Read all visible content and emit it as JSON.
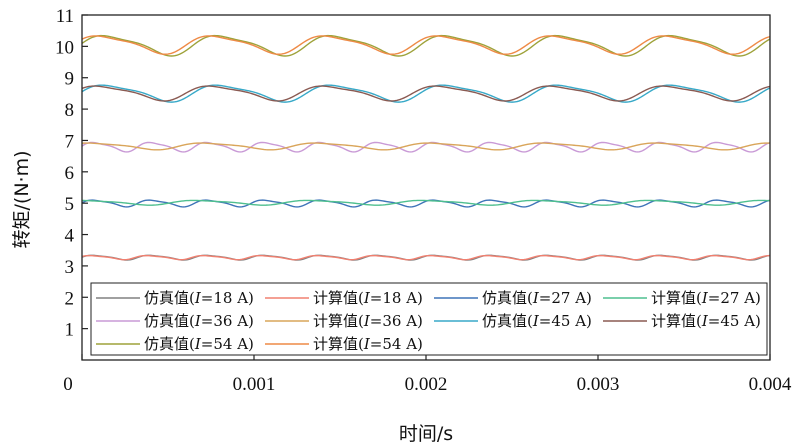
{
  "chart_data": {
    "type": "line",
    "title": "",
    "xlabel": "时间/s",
    "ylabel": "转矩/(N·m)",
    "xlim": [
      0,
      0.004
    ],
    "ylim": [
      0,
      11
    ],
    "xticks": [
      0,
      0.001,
      0.002,
      0.003,
      0.004
    ],
    "xtick_labels": [
      "0",
      "0.001",
      "0.002",
      "0.003",
      "0.004"
    ],
    "yticks": [
      1,
      2,
      3,
      4,
      5,
      6,
      7,
      8,
      9,
      10,
      11
    ],
    "ytick_labels": [
      "1",
      "2",
      "3",
      "4",
      "5",
      "6",
      "7",
      "8",
      "9",
      "10",
      "11"
    ],
    "grid": false,
    "legend": {
      "placement": "bottom-left",
      "columns": 4,
      "entries": [
        {
          "label_prefix": "仿真值(",
          "label_var": "I",
          "label_suffix": "=18 A)",
          "color": "#808080"
        },
        {
          "label_prefix": "计算值(",
          "label_var": "I",
          "label_suffix": "=18 A)",
          "color": "#f08070"
        },
        {
          "label_prefix": "仿真值(",
          "label_var": "I",
          "label_suffix": "=27 A)",
          "color": "#3f74b8"
        },
        {
          "label_prefix": "计算值(",
          "label_var": "I",
          "label_suffix": "=27 A)",
          "color": "#4fbf8f"
        },
        {
          "label_prefix": "仿真值(",
          "label_var": "I",
          "label_suffix": "=36 A)",
          "color": "#c99ad6"
        },
        {
          "label_prefix": "计算值(",
          "label_var": "I",
          "label_suffix": "=36 A)",
          "color": "#d9a55a"
        },
        {
          "label_prefix": "仿真值(",
          "label_var": "I",
          "label_suffix": "=45 A)",
          "color": "#38a9c8"
        },
        {
          "label_prefix": "计算值(",
          "label_var": "I",
          "label_suffix": "=45 A)",
          "color": "#8a5a52"
        },
        {
          "label_prefix": "仿真值(",
          "label_var": "I",
          "label_suffix": "=54 A)",
          "color": "#9ea23a"
        },
        {
          "label_prefix": "计算值(",
          "label_var": "I",
          "label_suffix": "=54 A)",
          "color": "#ee8a46"
        }
      ]
    },
    "series": [
      {
        "color": "#808080",
        "mean": 3.27,
        "amplitude": 0.07,
        "period": 0.00033,
        "phase": 0.0
      },
      {
        "color": "#f08070",
        "mean": 3.27,
        "amplitude": 0.06,
        "period": 0.00033,
        "phase": 0.3
      },
      {
        "color": "#3f74b8",
        "mean": 5.0,
        "amplitude": 0.1,
        "period": 0.00033,
        "phase": 0.0
      },
      {
        "color": "#4fbf8f",
        "mean": 5.02,
        "amplitude": 0.07,
        "period": 0.00066,
        "phase": 1.2
      },
      {
        "color": "#c99ad6",
        "mean": 6.8,
        "amplitude": 0.14,
        "period": 0.00033,
        "phase": 0.0
      },
      {
        "color": "#d9a55a",
        "mean": 6.82,
        "amplitude": 0.1,
        "period": 0.00066,
        "phase": 0.8
      },
      {
        "color": "#38a9c8",
        "mean": 8.52,
        "amplitude": 0.25,
        "period": 0.00066,
        "phase": 0.0
      },
      {
        "color": "#8a5a52",
        "mean": 8.52,
        "amplitude": 0.22,
        "period": 0.00066,
        "phase": 0.4
      },
      {
        "color": "#9ea23a",
        "mean": 10.05,
        "amplitude": 0.3,
        "period": 0.00066,
        "phase": 0.0
      },
      {
        "color": "#ee8a46",
        "mean": 10.07,
        "amplitude": 0.27,
        "period": 0.00066,
        "phase": 0.35
      }
    ]
  }
}
